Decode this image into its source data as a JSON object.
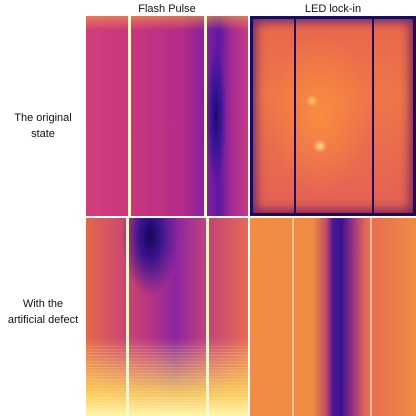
{
  "columns": {
    "flash_pulse": "Flash Pulse",
    "led_lock_in": "LED lock-in"
  },
  "rows": {
    "original": {
      "line1": "The original",
      "line2": "state"
    },
    "defect": {
      "line1": "With the",
      "line2": "artificial defect"
    }
  },
  "colors": {
    "colormap": "inferno/plasma",
    "hot": "#fff6a8",
    "mid": "#e2684c",
    "cold": "#1c0a6e"
  }
}
